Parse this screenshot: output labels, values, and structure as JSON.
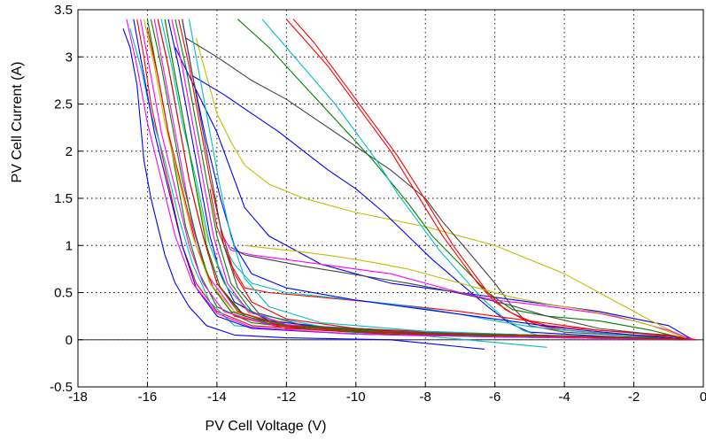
{
  "chart_data": {
    "type": "line",
    "xlabel": "PV Cell Voltage (V)",
    "ylabel": "PV Cell Current (A)",
    "xlim": [
      -18,
      0
    ],
    "ylim": [
      -0.5,
      3.5
    ],
    "xticks": [
      -18,
      -16,
      -14,
      -12,
      -10,
      -8,
      -6,
      -4,
      -2,
      0
    ],
    "yticks": [
      -0.5,
      0,
      0.5,
      1,
      1.5,
      2,
      2.5,
      3,
      3.5
    ],
    "xtick_labels": [
      "-18",
      "-16",
      "-14",
      "-12",
      "-10",
      "-8",
      "-6",
      "-4",
      "-2",
      "0"
    ],
    "ytick_labels": [
      "-0.5",
      "0",
      "0.5",
      "1",
      "1.5",
      "2",
      "2.5",
      "3",
      "3.5"
    ],
    "grid": true,
    "zero_line": true,
    "series": [
      {
        "color": "#0000ff",
        "x": [
          -16.7,
          -16.5,
          -16.3,
          -16.2,
          -16.1,
          -15.9,
          -15.7,
          -15.5,
          -15.2,
          -14.8,
          -14.3,
          -13.5,
          -12,
          -9,
          -6.3
        ],
        "y": [
          3.3,
          3.1,
          2.7,
          2.3,
          1.9,
          1.5,
          1.2,
          0.9,
          0.6,
          0.35,
          0.15,
          0.05,
          0.02,
          0.0,
          -0.1
        ]
      },
      {
        "color": "#ff0000",
        "x": [
          -16.3,
          -16.1,
          -15.9,
          -15.6,
          -15.3,
          -15.0,
          -14.6,
          -14.0,
          -13.0,
          -10.0,
          -6.0,
          -2.0,
          -0.3
        ],
        "y": [
          3.4,
          3.0,
          2.5,
          2.0,
          1.5,
          1.0,
          0.6,
          0.3,
          0.15,
          0.08,
          0.05,
          0.02,
          0.0
        ]
      },
      {
        "color": "#008000",
        "x": [
          -16.0,
          -15.8,
          -15.5,
          -15.2,
          -14.9,
          -14.5,
          -14.0,
          -13.0,
          -11.0,
          -8.0,
          -4.0,
          -0.5
        ],
        "y": [
          3.4,
          3.0,
          2.4,
          1.8,
          1.2,
          0.7,
          0.35,
          0.18,
          0.1,
          0.06,
          0.03,
          0.0
        ]
      },
      {
        "color": "#ff00ff",
        "x": [
          -15.8,
          -15.6,
          -15.3,
          -15.0,
          -14.7,
          -14.3,
          -13.5,
          -12.0,
          -9.0,
          -5.0,
          -1.0,
          -0.3
        ],
        "y": [
          3.4,
          3.0,
          2.4,
          1.8,
          1.2,
          0.7,
          0.3,
          0.16,
          0.1,
          0.05,
          0.02,
          0.0
        ]
      },
      {
        "color": "#00bfbf",
        "x": [
          -16.5,
          -16.2,
          -15.9,
          -15.5,
          -15.1,
          -14.7,
          -14.2,
          -13.5,
          -11.0,
          -8.0,
          -4.5
        ],
        "y": [
          3.3,
          2.9,
          2.4,
          1.9,
          1.3,
          0.8,
          0.4,
          0.15,
          0.08,
          0.04,
          -0.08
        ]
      },
      {
        "color": "#444444",
        "x": [
          -15.7,
          -15.4,
          -15.1,
          -14.8,
          -14.4,
          -14.0,
          -13.2,
          -12.0,
          -9.0,
          -5.0,
          -1.0,
          -0.2
        ],
        "y": [
          3.4,
          2.9,
          2.3,
          1.7,
          1.1,
          0.6,
          0.25,
          0.14,
          0.08,
          0.04,
          0.02,
          0.0
        ]
      },
      {
        "color": "#bfbf00",
        "x": [
          -15.5,
          -15.3,
          -15.0,
          -14.7,
          -14.3,
          -13.8,
          -13.0,
          -11.0,
          -8.0,
          -5.0,
          -2.0,
          -0.3
        ],
        "y": [
          3.4,
          3.0,
          2.4,
          1.8,
          1.1,
          0.6,
          0.25,
          0.12,
          0.07,
          0.04,
          0.02,
          0.0
        ]
      },
      {
        "color": "#0000ff",
        "x": [
          -15.4,
          -15.1,
          -14.8,
          -14.5,
          -14.2,
          -13.9,
          -13.5,
          -12.5,
          -10.0,
          -7.0,
          -3.0,
          -0.5
        ],
        "y": [
          3.4,
          2.9,
          2.3,
          1.7,
          1.1,
          0.7,
          0.4,
          0.2,
          0.1,
          0.05,
          0.02,
          0.0
        ]
      },
      {
        "color": "#ff0000",
        "x": [
          -16.0,
          -15.7,
          -15.4,
          -15.0,
          -14.6,
          -14.1,
          -13.5,
          -12.0,
          -9.0,
          -6.0,
          -3.0,
          -0.4
        ],
        "y": [
          3.3,
          2.8,
          2.2,
          1.6,
          1.0,
          0.55,
          0.25,
          0.12,
          0.06,
          0.04,
          0.02,
          0.0
        ]
      },
      {
        "color": "#008000",
        "x": [
          -15.2,
          -14.9,
          -14.6,
          -14.3,
          -14.0,
          -13.6,
          -13.0,
          -12.0,
          -10.0,
          -7.0,
          -4.0,
          -0.6
        ],
        "y": [
          3.4,
          2.9,
          2.3,
          1.7,
          1.1,
          0.6,
          0.3,
          0.15,
          0.08,
          0.05,
          0.02,
          0.0
        ]
      },
      {
        "color": "#ff00ff",
        "x": [
          -16.2,
          -15.9,
          -15.6,
          -15.2,
          -14.8,
          -14.4,
          -13.8,
          -12.5,
          -10.0,
          -6.0,
          -2.0,
          -0.3
        ],
        "y": [
          3.4,
          2.8,
          2.2,
          1.6,
          1.0,
          0.6,
          0.3,
          0.16,
          0.1,
          0.05,
          0.02,
          0.0
        ]
      },
      {
        "color": "#00bfbf",
        "x": [
          -15.6,
          -15.3,
          -15.0,
          -14.6,
          -14.2,
          -13.7,
          -13.0,
          -11.0,
          -8.0,
          -5.0,
          -2.0,
          -0.3
        ],
        "y": [
          3.4,
          2.9,
          2.3,
          1.7,
          1.0,
          0.55,
          0.28,
          0.14,
          0.08,
          0.05,
          0.02,
          0.0
        ]
      },
      {
        "color": "#0000ff",
        "x": [
          -15.2,
          -14.8,
          -14.4,
          -14.0,
          -13.6,
          -13.2,
          -12.5,
          -11.0,
          -9.0,
          -7.0,
          -5.0,
          -3.0,
          -1.0,
          -0.3
        ],
        "y": [
          3.1,
          2.8,
          2.5,
          2.2,
          1.8,
          1.4,
          1.1,
          0.8,
          0.6,
          0.5,
          0.4,
          0.3,
          0.15,
          0.0
        ]
      },
      {
        "color": "#bfbf00",
        "x": [
          -14.6,
          -14.3,
          -14.0,
          -13.6,
          -13.2,
          -12.5,
          -11.5,
          -10.0,
          -8.0,
          -6.0,
          -4.0,
          -2.5,
          -1.5,
          -0.4
        ],
        "y": [
          3.2,
          2.8,
          2.4,
          2.1,
          1.85,
          1.65,
          1.5,
          1.35,
          1.2,
          1.0,
          0.7,
          0.4,
          0.2,
          0.0
        ]
      },
      {
        "color": "#444444",
        "x": [
          -14.9,
          -14.0,
          -13.0,
          -12.0,
          -11.0,
          -10.0,
          -9.0,
          -8.0,
          -7.5,
          -6.8,
          -6.0,
          -5.5,
          -5.0,
          -4.0,
          -2.0,
          -0.3
        ],
        "y": [
          3.2,
          3.0,
          2.75,
          2.55,
          2.3,
          2.05,
          1.8,
          1.5,
          1.25,
          0.95,
          0.6,
          0.35,
          0.15,
          0.08,
          0.04,
          0.0
        ]
      },
      {
        "color": "#0000ff",
        "x": [
          -14.7,
          -13.8,
          -13.0,
          -12.2,
          -11.5,
          -10.8,
          -10.0,
          -9.2,
          -8.5,
          -7.8,
          -7.0,
          -6.2,
          -5.6,
          -5.0,
          -3.0,
          -0.3
        ],
        "y": [
          2.8,
          2.6,
          2.4,
          2.2,
          2.0,
          1.8,
          1.6,
          1.35,
          1.1,
          0.85,
          0.6,
          0.35,
          0.18,
          0.08,
          0.04,
          0.0
        ]
      },
      {
        "color": "#008000",
        "x": [
          -13.4,
          -12.5,
          -11.5,
          -10.5,
          -9.5,
          -8.5,
          -7.8,
          -7.0,
          -6.2,
          -5.5,
          -4.5,
          -3.0,
          -1.5,
          -0.4
        ],
        "y": [
          3.4,
          3.1,
          2.7,
          2.3,
          1.9,
          1.45,
          1.1,
          0.8,
          0.5,
          0.32,
          0.25,
          0.2,
          0.1,
          0.0
        ]
      },
      {
        "color": "#00bfbf",
        "x": [
          -12.7,
          -12.0,
          -11.3,
          -10.6,
          -10.0,
          -9.4,
          -8.8,
          -8.2,
          -7.6,
          -7.0,
          -6.4,
          -5.8,
          -5.2,
          -4.6
        ],
        "y": [
          3.4,
          3.1,
          2.8,
          2.5,
          2.2,
          1.9,
          1.55,
          1.25,
          0.95,
          0.7,
          0.45,
          0.25,
          0.1,
          0.03
        ]
      },
      {
        "color": "#ff0000",
        "x": [
          -12.0,
          -11.4,
          -10.8,
          -10.2,
          -9.6,
          -9.0,
          -8.5,
          -8.0,
          -7.5,
          -7.0,
          -6.5,
          -6.0,
          -5.5,
          -5.0,
          -4.5,
          -3.0,
          -1.0,
          -0.2
        ],
        "y": [
          3.4,
          3.15,
          2.9,
          2.6,
          2.3,
          2.0,
          1.7,
          1.4,
          1.1,
          0.85,
          0.6,
          0.4,
          0.28,
          0.2,
          0.15,
          0.1,
          0.05,
          0.0
        ]
      },
      {
        "color": "#ff0000",
        "x": [
          -11.8,
          -11.2,
          -10.6,
          -10.0,
          -9.4,
          -8.8,
          -8.2,
          -7.7,
          -7.2,
          -6.7,
          -6.2,
          -5.7,
          -5.2,
          -4.7,
          -4.0,
          -2.5,
          -0.8,
          -0.2
        ],
        "y": [
          3.4,
          3.15,
          2.85,
          2.55,
          2.25,
          1.95,
          1.6,
          1.3,
          1.0,
          0.75,
          0.5,
          0.32,
          0.22,
          0.15,
          0.1,
          0.06,
          0.03,
          0.0
        ]
      },
      {
        "color": "#ff0000",
        "x": [
          -14.2,
          -14.0,
          -13.6,
          -13.2,
          -12.5,
          -11.0,
          -9.0,
          -7.0,
          -5.0,
          -3.0,
          -1.0,
          -0.3
        ],
        "y": [
          1.6,
          1.2,
          0.8,
          0.55,
          0.5,
          0.45,
          0.38,
          0.3,
          0.2,
          0.1,
          0.04,
          0.0
        ]
      },
      {
        "color": "#ff00ff",
        "x": [
          -13.9,
          -13.6,
          -13.0,
          -12.0,
          -11.0,
          -10.0,
          -9.0,
          -8.0,
          -7.0,
          -6.0,
          -5.0,
          -4.0,
          -3.0,
          -2.0,
          -1.0,
          -0.3
        ],
        "y": [
          1.15,
          0.95,
          0.9,
          0.85,
          0.8,
          0.75,
          0.7,
          0.6,
          0.5,
          0.42,
          0.38,
          0.33,
          0.28,
          0.2,
          0.1,
          0.0
        ]
      },
      {
        "color": "#00bfbf",
        "x": [
          -13.8,
          -13.5,
          -13.0,
          -12.0,
          -11.0,
          -10.0,
          -9.0,
          -8.0,
          -7.0,
          -6.0,
          -5.0,
          -4.0,
          -3.0,
          -1.5,
          -0.3
        ],
        "y": [
          1.0,
          0.8,
          0.6,
          0.5,
          0.46,
          0.42,
          0.38,
          0.33,
          0.27,
          0.2,
          0.14,
          0.1,
          0.07,
          0.03,
          0.0
        ]
      },
      {
        "color": "#bfbf00",
        "x": [
          -13.2,
          -12.5,
          -11.5,
          -10.5,
          -9.5,
          -8.5,
          -7.5,
          -6.5,
          -5.5,
          -4.5,
          -3.5,
          -2.5,
          -1.5,
          -0.5
        ],
        "y": [
          1.0,
          0.97,
          0.93,
          0.88,
          0.82,
          0.75,
          0.65,
          0.55,
          0.45,
          0.38,
          0.32,
          0.25,
          0.15,
          0.02
        ]
      },
      {
        "color": "#444444",
        "x": [
          -13.6,
          -13.2,
          -12.5,
          -11.5,
          -10.5,
          -9.5,
          -8.5,
          -7.5,
          -6.5,
          -5.5,
          -4.5,
          -3.0,
          -1.0,
          -0.3
        ],
        "y": [
          0.98,
          0.9,
          0.85,
          0.78,
          0.72,
          0.66,
          0.6,
          0.53,
          0.45,
          0.36,
          0.25,
          0.12,
          0.04,
          0.0
        ]
      },
      {
        "color": "#0000ff",
        "x": [
          -15.0,
          -14.7,
          -14.3,
          -13.9,
          -13.5,
          -13.0,
          -12.0,
          -10.0,
          -8.0,
          -6.0,
          -4.0,
          -2.0,
          -0.3
        ],
        "y": [
          3.4,
          2.8,
          2.1,
          1.5,
          1.0,
          0.7,
          0.55,
          0.42,
          0.32,
          0.22,
          0.12,
          0.05,
          0.0
        ]
      },
      {
        "color": "#008000",
        "x": [
          -15.9,
          -15.6,
          -15.3,
          -15.0,
          -14.6,
          -14.2,
          -13.6,
          -12.5,
          -10.0,
          -7.0,
          -4.0,
          -1.0,
          -0.3
        ],
        "y": [
          3.4,
          2.9,
          2.3,
          1.7,
          1.1,
          0.6,
          0.3,
          0.17,
          0.1,
          0.06,
          0.03,
          0.01,
          0.0
        ]
      },
      {
        "color": "#ff0000",
        "x": [
          -15.1,
          -14.8,
          -14.5,
          -14.2,
          -13.9,
          -13.5,
          -13.0,
          -12.0,
          -10.0,
          -7.0,
          -4.0,
          -1.0,
          -0.3
        ],
        "y": [
          3.4,
          2.9,
          2.3,
          1.7,
          1.2,
          0.7,
          0.4,
          0.22,
          0.12,
          0.07,
          0.04,
          0.01,
          0.0
        ]
      },
      {
        "color": "#ff00ff",
        "x": [
          -15.3,
          -15.0,
          -14.7,
          -14.4,
          -14.1,
          -13.7,
          -13.1,
          -12.0,
          -9.0,
          -5.0,
          -1.5,
          -0.3
        ],
        "y": [
          3.4,
          2.9,
          2.3,
          1.7,
          1.1,
          0.6,
          0.3,
          0.16,
          0.09,
          0.05,
          0.02,
          0.0
        ]
      },
      {
        "color": "#00bfbf",
        "x": [
          -14.8,
          -14.5,
          -14.2,
          -13.9,
          -13.6,
          -13.2,
          -12.5,
          -11.0,
          -8.0,
          -5.0,
          -2.0,
          -0.3
        ],
        "y": [
          3.4,
          2.8,
          2.2,
          1.6,
          1.1,
          0.65,
          0.35,
          0.18,
          0.09,
          0.05,
          0.02,
          0.0
        ]
      },
      {
        "color": "#444444",
        "x": [
          -15.0,
          -14.7,
          -14.4,
          -14.1,
          -13.8,
          -13.4,
          -12.8,
          -11.5,
          -8.5,
          -5.5,
          -2.5,
          -0.3
        ],
        "y": [
          3.4,
          2.8,
          2.2,
          1.6,
          1.0,
          0.55,
          0.28,
          0.15,
          0.08,
          0.05,
          0.02,
          0.0
        ]
      },
      {
        "color": "#bfbf00",
        "x": [
          -16.1,
          -15.8,
          -15.5,
          -15.1,
          -14.7,
          -14.2,
          -13.5,
          -12.0,
          -9.0,
          -6.0,
          -3.0,
          -0.3
        ],
        "y": [
          3.4,
          2.9,
          2.3,
          1.7,
          1.1,
          0.6,
          0.3,
          0.15,
          0.08,
          0.05,
          0.02,
          0.0
        ]
      },
      {
        "color": "#0000ff",
        "x": [
          -16.4,
          -16.1,
          -15.8,
          -15.4,
          -15.0,
          -14.6,
          -14.0,
          -13.0,
          -10.0,
          -6.0,
          -2.0,
          -0.3
        ],
        "y": [
          3.4,
          2.8,
          2.2,
          1.6,
          1.0,
          0.55,
          0.25,
          0.12,
          0.06,
          0.03,
          0.01,
          0.0
        ]
      },
      {
        "color": "#008000",
        "x": [
          -15.5,
          -15.2,
          -14.9,
          -14.6,
          -14.3,
          -13.9,
          -13.3,
          -12.0,
          -9.0,
          -5.0,
          -1.5,
          -0.3
        ],
        "y": [
          3.4,
          2.8,
          2.2,
          1.6,
          1.0,
          0.55,
          0.28,
          0.15,
          0.08,
          0.05,
          0.02,
          0.0
        ]
      },
      {
        "color": "#ff00ff",
        "x": [
          -16.6,
          -16.3,
          -16.0,
          -15.6,
          -15.2,
          -14.7,
          -14.0,
          -13.0,
          -10.0,
          -6.0,
          -2.0,
          -0.3
        ],
        "y": [
          3.4,
          2.9,
          2.3,
          1.7,
          1.1,
          0.6,
          0.28,
          0.13,
          0.06,
          0.03,
          0.01,
          0.0
        ]
      },
      {
        "color": "#ff0000",
        "x": [
          -15.7,
          -15.4,
          -15.1,
          -14.8,
          -14.4,
          -14.0,
          -13.4,
          -12.2,
          -9.5,
          -6.0,
          -2.5,
          -0.3
        ],
        "y": [
          3.4,
          2.9,
          2.3,
          1.7,
          1.1,
          0.6,
          0.3,
          0.15,
          0.08,
          0.05,
          0.02,
          0.0
        ]
      }
    ]
  }
}
